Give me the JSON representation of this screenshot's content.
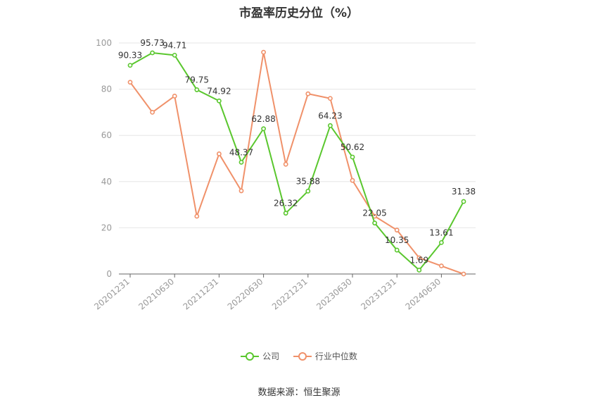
{
  "title": "市盈率历史分位（%）",
  "source": "数据来源：恒生聚源",
  "chart_data": {
    "type": "line",
    "x": [
      "20201231",
      "20210331",
      "20210630",
      "20210930",
      "20211231",
      "20220331",
      "20220630",
      "20220930",
      "20221231",
      "20230331",
      "20230630",
      "20230930",
      "20231231",
      "20240331",
      "20240630",
      "20240930"
    ],
    "xticks": [
      "20201231",
      "20210630",
      "20211231",
      "20220630",
      "20221231",
      "20230630",
      "20231231",
      "20240630"
    ],
    "ylim": [
      0,
      100
    ],
    "yticks": [
      0,
      20,
      40,
      60,
      80,
      100
    ],
    "grid": true,
    "legend_position": "bottom",
    "series": [
      {
        "name": "公司",
        "color": "#5ac72e",
        "values": [
          90.33,
          95.73,
          94.71,
          79.75,
          74.92,
          48.37,
          62.88,
          26.32,
          35.88,
          64.23,
          50.62,
          22.05,
          10.35,
          1.69,
          13.61,
          31.38
        ],
        "labels": [
          "90.33",
          "95.73",
          "94.71",
          "79.75",
          "74.92",
          "48.37",
          "62.88",
          "26.32",
          "35.88",
          "64.23",
          "50.62",
          "22.05",
          "10.35",
          "1.69",
          "13.61",
          "31.38"
        ]
      },
      {
        "name": "行业中位数",
        "color": "#f0916a",
        "values": [
          83,
          70,
          77,
          25,
          52,
          36,
          96,
          47.5,
          78,
          76,
          40.5,
          25,
          19,
          7,
          3.5,
          0
        ]
      }
    ]
  }
}
